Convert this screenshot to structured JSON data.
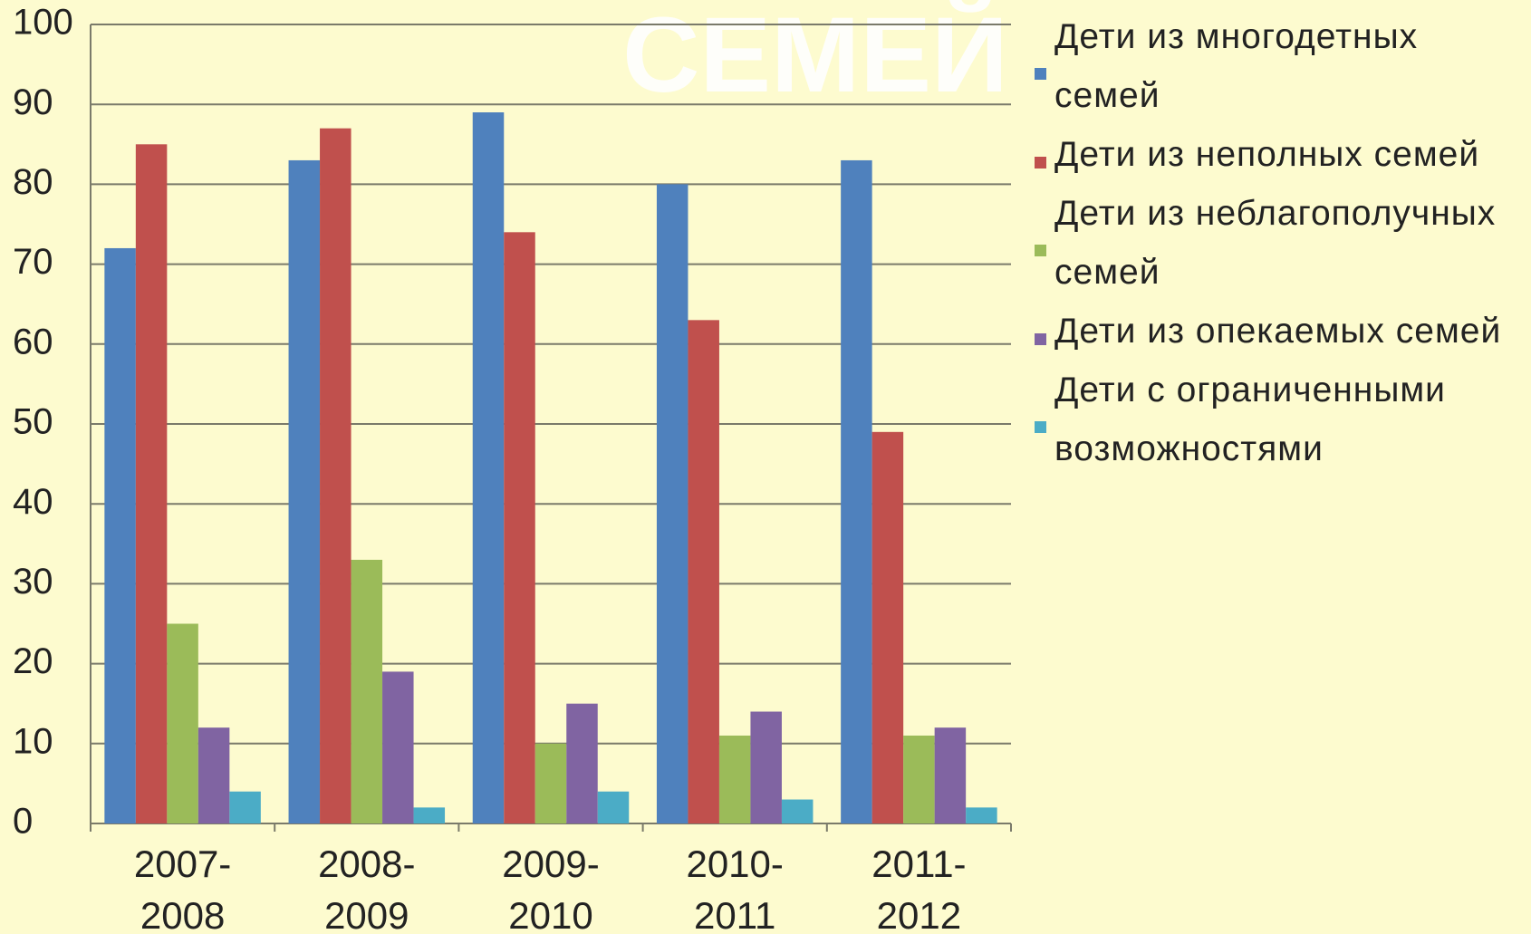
{
  "chart_data": {
    "type": "bar",
    "title": "СЕМЕЙ",
    "categories": [
      "2007-2008",
      "2008-2009",
      "2009-2010",
      "2010-2011",
      "2011-2012"
    ],
    "series": [
      {
        "name": "Дети из многодетных семей",
        "color": "#4f81bd",
        "values": [
          72,
          83,
          89,
          80,
          83
        ]
      },
      {
        "name": "Дети из неполных семей",
        "color": "#c0504d",
        "values": [
          85,
          87,
          74,
          63,
          49
        ]
      },
      {
        "name": "Дети из неблагополучных семей",
        "color": "#9bbb59",
        "values": [
          25,
          33,
          10,
          11,
          11
        ]
      },
      {
        "name": "Дети из опекаемых семей",
        "color": "#8064a2",
        "values": [
          12,
          19,
          15,
          14,
          12
        ]
      },
      {
        "name": "Дети с ограниченными возможностями",
        "color": "#4bacc6",
        "values": [
          4,
          2,
          4,
          3,
          2
        ]
      }
    ],
    "ylim": [
      0,
      100
    ],
    "yticks": [
      0,
      10,
      20,
      30,
      40,
      50,
      60,
      70,
      80,
      90,
      100
    ],
    "grid": true
  }
}
